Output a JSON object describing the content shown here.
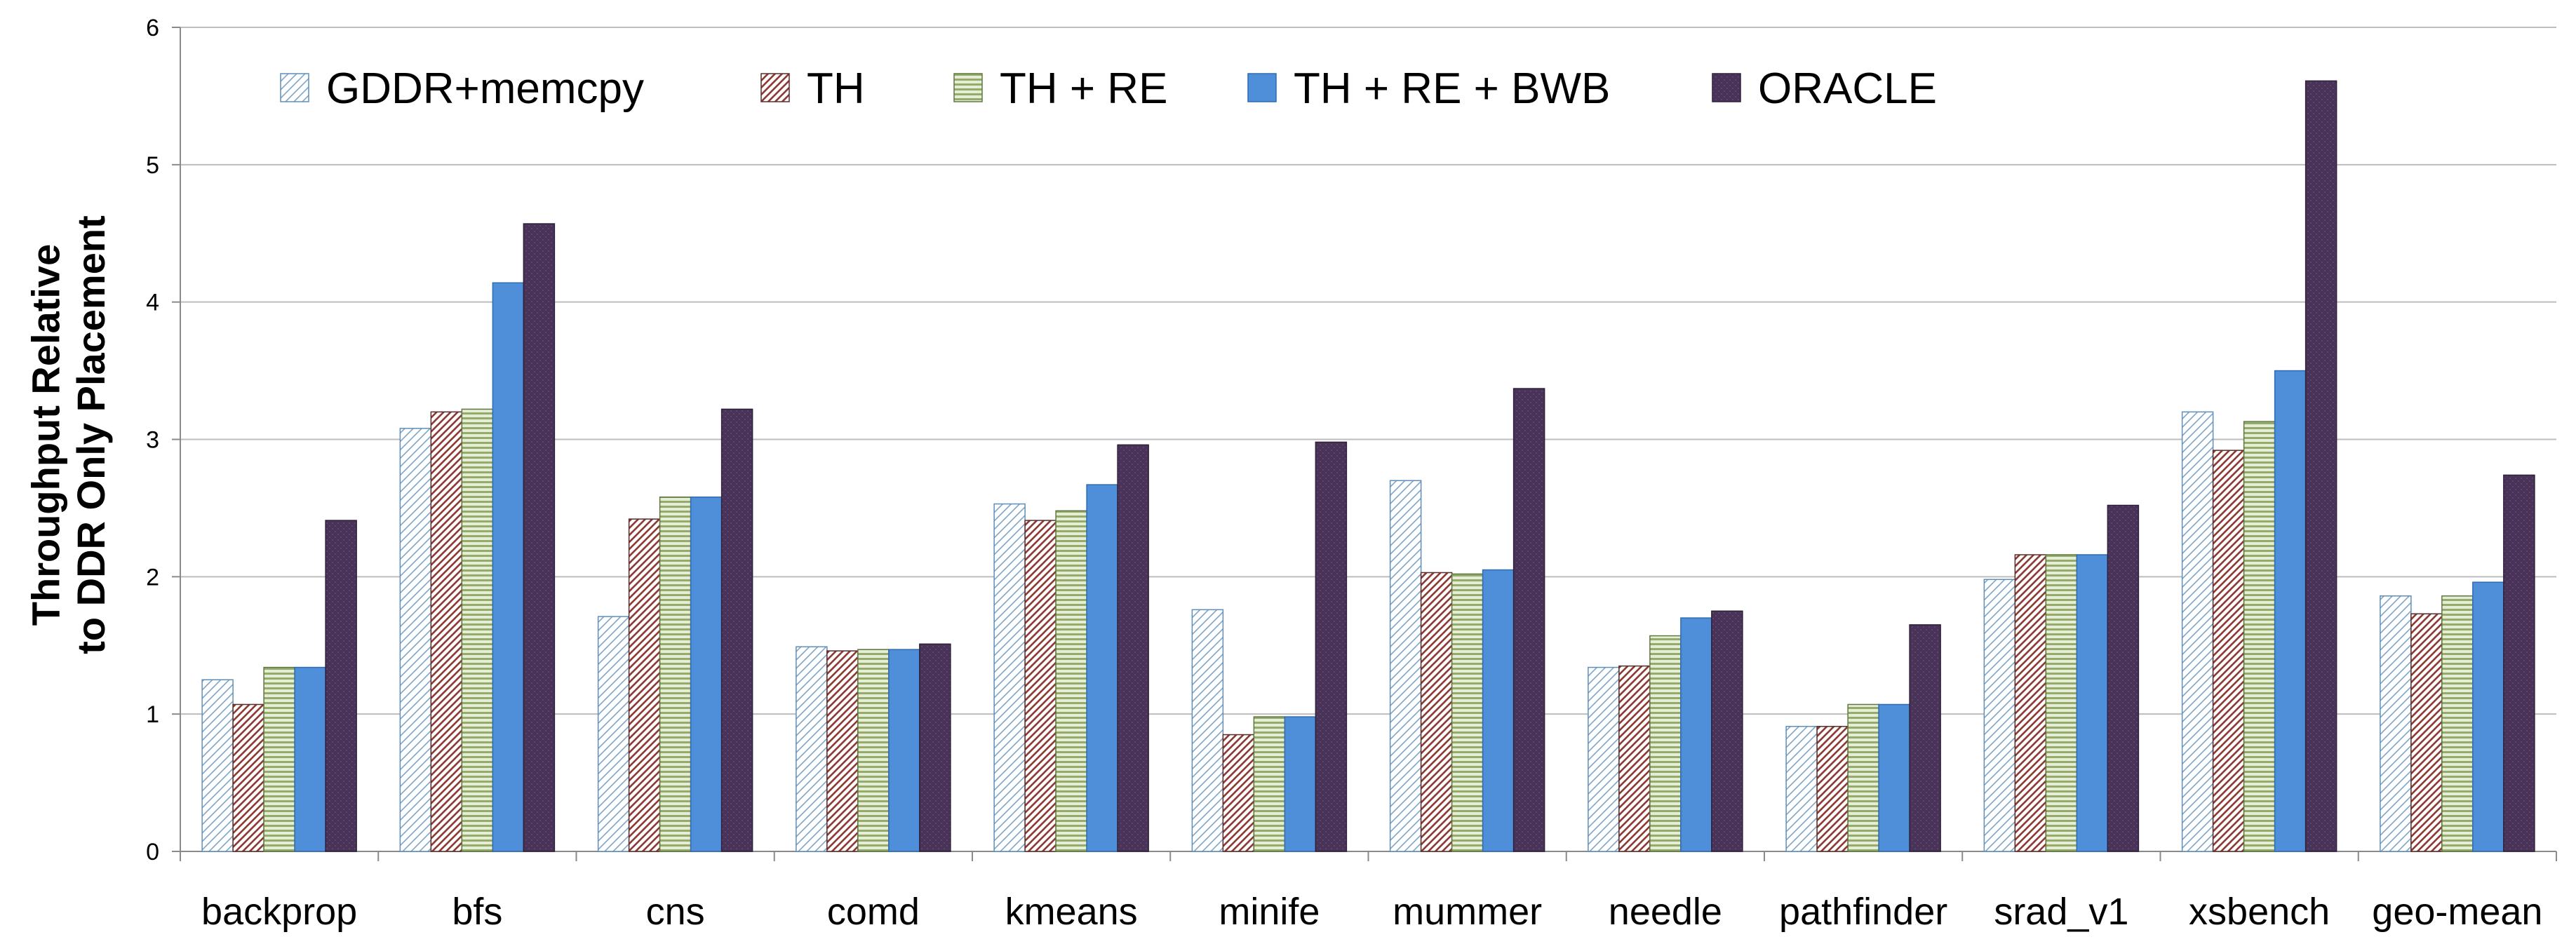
{
  "chart_data": {
    "type": "bar",
    "title": "",
    "ylabel": "Throughput Relative to DDR Only Placement",
    "ylabel_lines": [
      "Throughput Relative",
      "to DDR Only Placement"
    ],
    "xlabel": "",
    "ylim": [
      0,
      6
    ],
    "yticks": [
      0,
      1,
      2,
      3,
      4,
      5,
      6
    ],
    "grid": true,
    "legend_position": "top-left",
    "categories": [
      "backprop",
      "bfs",
      "cns",
      "comd",
      "kmeans",
      "minife",
      "mummer",
      "needle",
      "pathfinder",
      "srad_v1",
      "xsbench",
      "geo-mean"
    ],
    "series": [
      {
        "name": "GDDR+memcpy",
        "color": "#d6e6f2",
        "pattern": "light-diagonal",
        "values": [
          1.25,
          3.08,
          1.71,
          1.49,
          2.53,
          1.76,
          2.7,
          1.34,
          0.91,
          1.98,
          3.2,
          1.86
        ]
      },
      {
        "name": "TH",
        "color": "#f0d4d0",
        "pattern": "dark-diagonal",
        "values": [
          1.07,
          3.2,
          2.42,
          1.46,
          2.41,
          0.85,
          2.03,
          1.35,
          0.91,
          2.16,
          2.92,
          1.73
        ]
      },
      {
        "name": "TH + RE",
        "color": "#c8d8a6",
        "pattern": "horizontal",
        "values": [
          1.34,
          3.22,
          2.58,
          1.47,
          2.48,
          0.98,
          2.02,
          1.57,
          1.07,
          2.16,
          3.13,
          1.86
        ]
      },
      {
        "name": "TH + RE + BWB",
        "color": "#4f8ed8",
        "pattern": "solid",
        "values": [
          1.34,
          4.14,
          2.58,
          1.47,
          2.67,
          0.98,
          2.05,
          1.7,
          1.07,
          2.16,
          3.5,
          1.96
        ]
      },
      {
        "name": "ORACLE",
        "color": "#4a3358",
        "pattern": "dotted-dark",
        "values": [
          2.41,
          4.57,
          3.22,
          1.51,
          2.96,
          2.98,
          3.37,
          1.75,
          1.65,
          2.52,
          5.61,
          2.74
        ]
      }
    ]
  }
}
